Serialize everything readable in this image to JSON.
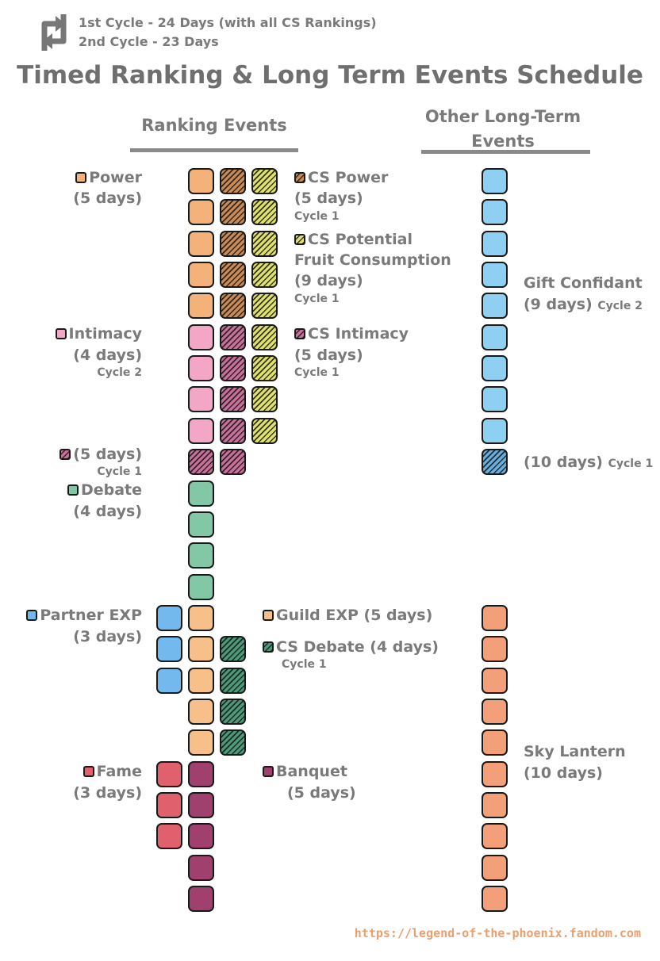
{
  "header": {
    "cycle1": "1st Cycle - 24 Days (with all CS Rankings)",
    "cycle2": "2nd Cycle - 23 Days",
    "title": "Timed Ranking & Long Term Events Schedule",
    "ranking_heading": "Ranking Events",
    "other_heading_1": "Other Long-Term",
    "other_heading_2": "Events"
  },
  "colors": {
    "power": "#f4b27b",
    "cs_power": "#c98a55",
    "cs_potential": "#dfe26a",
    "intimacy": "#f4a6c6",
    "cs_intimacy": "#c9709a",
    "debate": "#82c8a6",
    "cs_debate": "#4e9a78",
    "partner_exp": "#74b9ee",
    "guild_exp": "#f7c08a",
    "fame": "#e0606e",
    "banquet": "#a0406e",
    "gift_confidant": "#8fd0f2",
    "gift_confidant_cs": "#6aaee0",
    "sky_lantern": "#f3a07a",
    "text": "#7a7a7a",
    "link": "#e8a070"
  },
  "labels": {
    "power": {
      "name": "Power",
      "days": "(5 days)"
    },
    "cs_power": {
      "name": "CS Power",
      "days": "(5 days)",
      "cycle": "Cycle 1"
    },
    "cs_potential": {
      "name": "CS Potential",
      "name2": "Fruit Consumption",
      "days": "(9 days)",
      "cycle": "Cycle 1"
    },
    "intimacy": {
      "name": "Intimacy",
      "days": "(4 days)",
      "cycle": "Cycle 2"
    },
    "cs_intimacy": {
      "name": "CS Intimacy",
      "days": "(5 days)",
      "cycle": "Cycle 1"
    },
    "cs_intimacy_left": {
      "days": "(5 days)",
      "cycle": "Cycle 1"
    },
    "debate": {
      "name": "Debate",
      "days": "(4 days)"
    },
    "partner_exp": {
      "name": "Partner EXP",
      "days": "(3 days)"
    },
    "guild_exp": {
      "name": "Guild EXP (5 days)"
    },
    "cs_debate": {
      "name": "CS Debate (4 days)",
      "cycle": "Cycle 1"
    },
    "fame": {
      "name": "Fame",
      "days": "(3 days)"
    },
    "banquet": {
      "name": "Banquet",
      "days": "(5 days)"
    },
    "gift_confidant": {
      "name": "Gift Confidant",
      "days": "(9 days)",
      "cycle": "Cycle 2"
    },
    "gift_confidant_cs": {
      "days": "(10 days)",
      "cycle": "Cycle 1"
    },
    "sky_lantern": {
      "name": "Sky Lantern",
      "days": "(10 days)"
    }
  },
  "footer": {
    "link": "https://legend-of-the-phoenix.fandom.com"
  },
  "icon": "repeat-arrows-icon"
}
